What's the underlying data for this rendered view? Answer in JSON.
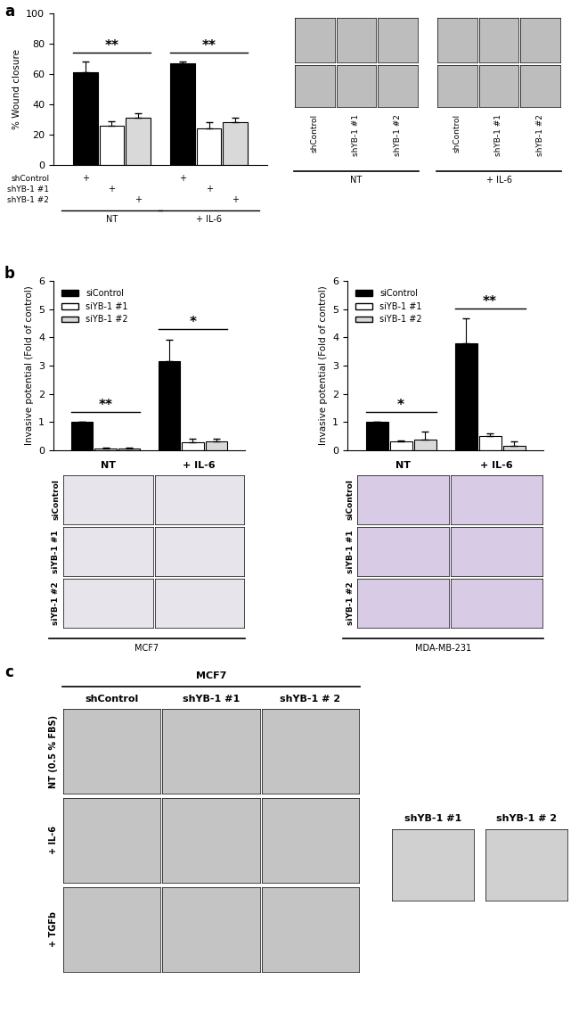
{
  "panel_labels": [
    "a",
    "b",
    "c"
  ],
  "chart_data": [
    {
      "type": "bar",
      "ylabel": "% Wound closure",
      "categories": [
        "NT",
        "+ IL-6"
      ],
      "ylim": [
        0,
        100
      ],
      "yticks": [
        0,
        20,
        40,
        60,
        80,
        100
      ],
      "tick_labels": "y",
      "series": [
        {
          "name": "shControl",
          "color": "#000000",
          "values": [
            61,
            67
          ],
          "error": [
            7,
            1
          ]
        },
        {
          "name": "shYB-1 #1",
          "color": "#ffffff",
          "values": [
            26,
            24
          ],
          "error": [
            3,
            4
          ]
        },
        {
          "name": "shYB-1 #2",
          "color": "#d9d9d9",
          "values": [
            31,
            28
          ],
          "error": [
            3,
            3
          ]
        }
      ],
      "significance": [
        "**",
        "**"
      ],
      "table_mark": "+"
    },
    {
      "type": "bar",
      "cell_line": "MCF7",
      "ylabel": "Invasive potential (Fold of control)",
      "categories": [
        "NT",
        "+ IL-6"
      ],
      "ylim": [
        0,
        6
      ],
      "yticks": [
        0,
        1,
        2,
        3,
        4,
        5,
        6
      ],
      "tick_labels": "y",
      "legend": "upper left",
      "series": [
        {
          "name": "siControl",
          "color": "#000000",
          "values": [
            1.0,
            3.15
          ],
          "error": [
            0.0,
            0.78
          ]
        },
        {
          "name": "siYB-1 #1",
          "color": "#ffffff",
          "values": [
            0.05,
            0.27
          ],
          "error": [
            0.03,
            0.15
          ]
        },
        {
          "name": "siYB-1 #2",
          "color": "#d9d9d9",
          "values": [
            0.07,
            0.32
          ],
          "error": [
            0.02,
            0.1
          ]
        }
      ],
      "significance": [
        "**",
        "*"
      ]
    },
    {
      "type": "bar",
      "cell_line": "MDA-MB-231",
      "ylabel": "Invasive potential (Fold of control)",
      "categories": [
        "NT",
        "+ IL-6"
      ],
      "ylim": [
        0,
        6
      ],
      "yticks": [
        0,
        1,
        2,
        3,
        4,
        5,
        6
      ],
      "tick_labels": "y",
      "legend": "upper left",
      "series": [
        {
          "name": "siControl",
          "color": "#000000",
          "values": [
            1.0,
            3.8
          ],
          "error": [
            0.0,
            0.87
          ]
        },
        {
          "name": "siYB-1 #1",
          "color": "#ffffff",
          "values": [
            0.33,
            0.5
          ],
          "error": [
            0.03,
            0.1
          ]
        },
        {
          "name": "siYB-1 #2",
          "color": "#d9d9d9",
          "values": [
            0.37,
            0.17
          ],
          "error": [
            0.28,
            0.15
          ]
        }
      ],
      "significance": [
        "*",
        "**"
      ]
    }
  ],
  "panel_c": {
    "title": "MCF7",
    "columns": [
      "shControl",
      "shYB-1 #1",
      "shYB-1 # 2"
    ],
    "rows": [
      "NT (0.5 % FBS)",
      "+ IL-6",
      "+ TGFb"
    ],
    "extra_columns": [
      "shYB-1 #1",
      "shYB-1 # 2"
    ]
  }
}
